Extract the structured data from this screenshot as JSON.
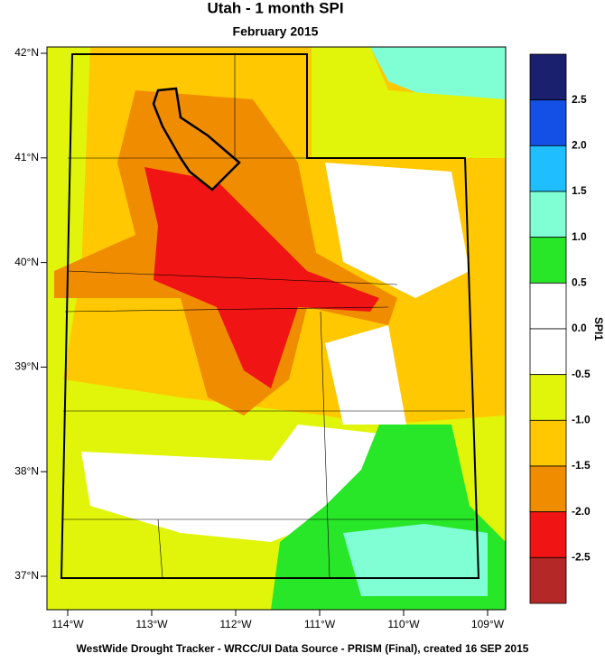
{
  "title": "Utah - 1 month SPI",
  "subtitle": "February 2015",
  "lat_labels": [
    "42°N",
    "41°N",
    "40°N",
    "39°N",
    "38°N",
    "37°N"
  ],
  "lon_labels": [
    "114°W",
    "113°W",
    "112°W",
    "111°W",
    "110°W",
    "109°W"
  ],
  "colorbar": {
    "title": "SPI1",
    "labels": [
      "2.5",
      "2.0",
      "1.5",
      "1.0",
      "0.5",
      "0.0",
      "-0.5",
      "-1.0",
      "-1.5",
      "-2.0",
      "-2.5"
    ],
    "colors": [
      "#1a1f6e",
      "#1450e6",
      "#1ebeff",
      "#80ffd4",
      "#28e628",
      "#ffffff",
      "#ffffff",
      "#e1f50a",
      "#ffc800",
      "#f08c00",
      "#f01414",
      "#b42828"
    ]
  },
  "footer": "WestWide Drought Tracker - WRCC/UI  Data Source - PRISM (Final), created 16 SEP 2015"
}
